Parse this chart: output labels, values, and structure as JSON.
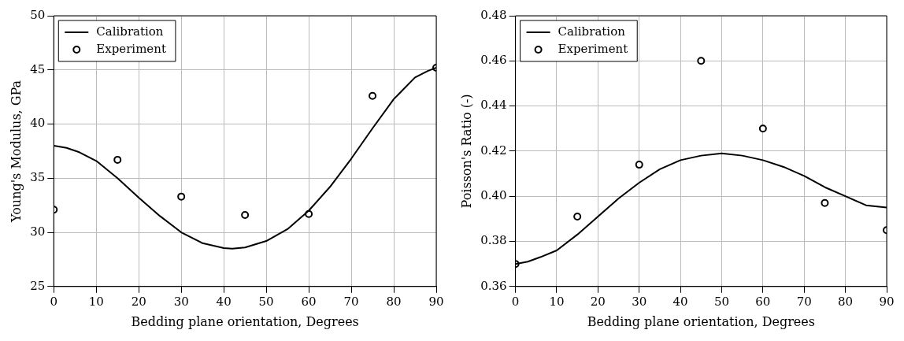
{
  "chart_data": [
    {
      "type": "line",
      "xlabel": "Bedding plane orientation, Degrees",
      "ylabel": "Young's Modulus, GPa",
      "xlim": [
        0,
        90
      ],
      "xticks": [
        0,
        10,
        20,
        30,
        40,
        50,
        60,
        70,
        80,
        90
      ],
      "ylim": [
        25,
        50
      ],
      "yticks": [
        25,
        30,
        35,
        40,
        45,
        50
      ],
      "grid": true,
      "legend": "top left",
      "series": [
        {
          "name": "Calibration",
          "type": "line",
          "color": "#000000",
          "marker": "none",
          "line_style": "solid",
          "x": [
            0,
            3,
            6,
            10,
            15,
            20,
            25,
            30,
            35,
            40,
            42,
            45,
            50,
            55,
            60,
            65,
            70,
            75,
            80,
            85,
            88,
            90
          ],
          "values": [
            38,
            37.8,
            37.4,
            36.6,
            35.0,
            33.2,
            31.5,
            30.0,
            29.0,
            28.55,
            28.5,
            28.6,
            29.2,
            30.3,
            32.0,
            34.2,
            36.8,
            39.6,
            42.3,
            44.3,
            44.9,
            45.2
          ]
        },
        {
          "name": "Experiment",
          "type": "scatter",
          "color": "#000000",
          "marker": "circle",
          "x": [
            0,
            15,
            30,
            45,
            60,
            75,
            90
          ],
          "values": [
            32.1,
            36.7,
            33.3,
            31.6,
            31.7,
            42.6,
            45.2
          ]
        }
      ]
    },
    {
      "type": "line",
      "xlabel": "Bedding plane orientation, Degrees",
      "ylabel": "Poisson's Ratio (-)",
      "xlim": [
        0,
        90
      ],
      "xticks": [
        0,
        10,
        20,
        30,
        40,
        50,
        60,
        70,
        80,
        90
      ],
      "ylim": [
        0.36,
        0.48
      ],
      "yticks": [
        0.36,
        0.38,
        {
          "value": 0.4,
          "label": "0.40"
        },
        0.42,
        0.44,
        0.46,
        0.48
      ],
      "grid": true,
      "legend": "top left",
      "series": [
        {
          "name": "Calibration",
          "type": "line",
          "color": "#000000",
          "marker": "none",
          "line_style": "solid",
          "x": [
            0,
            3,
            6,
            10,
            15,
            20,
            25,
            30,
            35,
            40,
            45,
            50,
            55,
            60,
            65,
            70,
            75,
            80,
            85,
            90
          ],
          "values": [
            0.37,
            0.371,
            0.373,
            0.376,
            0.383,
            0.391,
            0.399,
            0.406,
            0.412,
            0.416,
            0.418,
            0.419,
            0.418,
            0.416,
            0.413,
            0.409,
            0.404,
            0.4,
            0.396,
            0.395
          ]
        },
        {
          "name": "Experiment",
          "type": "scatter",
          "color": "#000000",
          "marker": "circle",
          "x": [
            0,
            15,
            30,
            45,
            60,
            75,
            90
          ],
          "values": [
            0.37,
            0.391,
            0.414,
            0.46,
            0.43,
            0.397,
            0.385
          ]
        }
      ]
    }
  ]
}
